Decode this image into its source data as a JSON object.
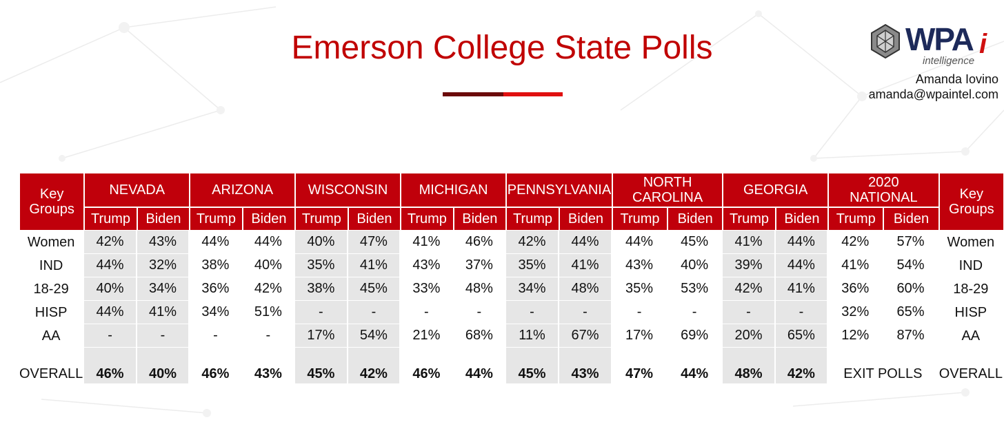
{
  "header": {
    "title": "Emerson College State Polls",
    "title_color": "#c00000",
    "accent_colors": [
      "#6b0a0a",
      "#e01010"
    ]
  },
  "logo": {
    "brand": "WPA",
    "accent": "i",
    "subtitle": "intelligence",
    "icon": "gear-sphere-icon"
  },
  "contact": {
    "name": "Amanda Iovino",
    "email": "amanda@wpaintel.com"
  },
  "table": {
    "key_header": "Key Groups",
    "states": [
      "NEVADA",
      "ARIZONA",
      "WISCONSIN",
      "MICHIGAN",
      "PENNSYLVANIA",
      "NORTH CAROLINA",
      "GEORGIA",
      "2020 NATIONAL"
    ],
    "sub_headers": [
      "Trump",
      "Biden"
    ],
    "header_color": "#c0000b",
    "shade_color": "#e6e6e6",
    "rows": [
      {
        "group": "Women",
        "values": [
          "42%",
          "43%",
          "44%",
          "44%",
          "40%",
          "47%",
          "41%",
          "46%",
          "42%",
          "44%",
          "44%",
          "45%",
          "41%",
          "44%",
          "42%",
          "57%"
        ]
      },
      {
        "group": "IND",
        "values": [
          "44%",
          "32%",
          "38%",
          "40%",
          "35%",
          "41%",
          "43%",
          "37%",
          "35%",
          "41%",
          "43%",
          "40%",
          "39%",
          "44%",
          "41%",
          "54%"
        ]
      },
      {
        "group": "18-29",
        "values": [
          "40%",
          "34%",
          "36%",
          "42%",
          "38%",
          "45%",
          "33%",
          "48%",
          "34%",
          "48%",
          "35%",
          "53%",
          "42%",
          "41%",
          "36%",
          "60%"
        ]
      },
      {
        "group": "HISP",
        "values": [
          "44%",
          "41%",
          "34%",
          "51%",
          "-",
          "-",
          "-",
          "-",
          "-",
          "-",
          "-",
          "-",
          "-",
          "-",
          "32%",
          "65%"
        ]
      },
      {
        "group": "AA",
        "values": [
          "-",
          "-",
          "-",
          "-",
          "17%",
          "54%",
          "21%",
          "68%",
          "11%",
          "67%",
          "17%",
          "69%",
          "20%",
          "65%",
          "12%",
          "87%"
        ]
      }
    ],
    "overall": {
      "group": "OVERALL",
      "values": [
        "46%",
        "40%",
        "46%",
        "43%",
        "45%",
        "42%",
        "46%",
        "44%",
        "45%",
        "43%",
        "47%",
        "44%",
        "48%",
        "42%"
      ],
      "national_note": "EXIT POLLS"
    }
  }
}
